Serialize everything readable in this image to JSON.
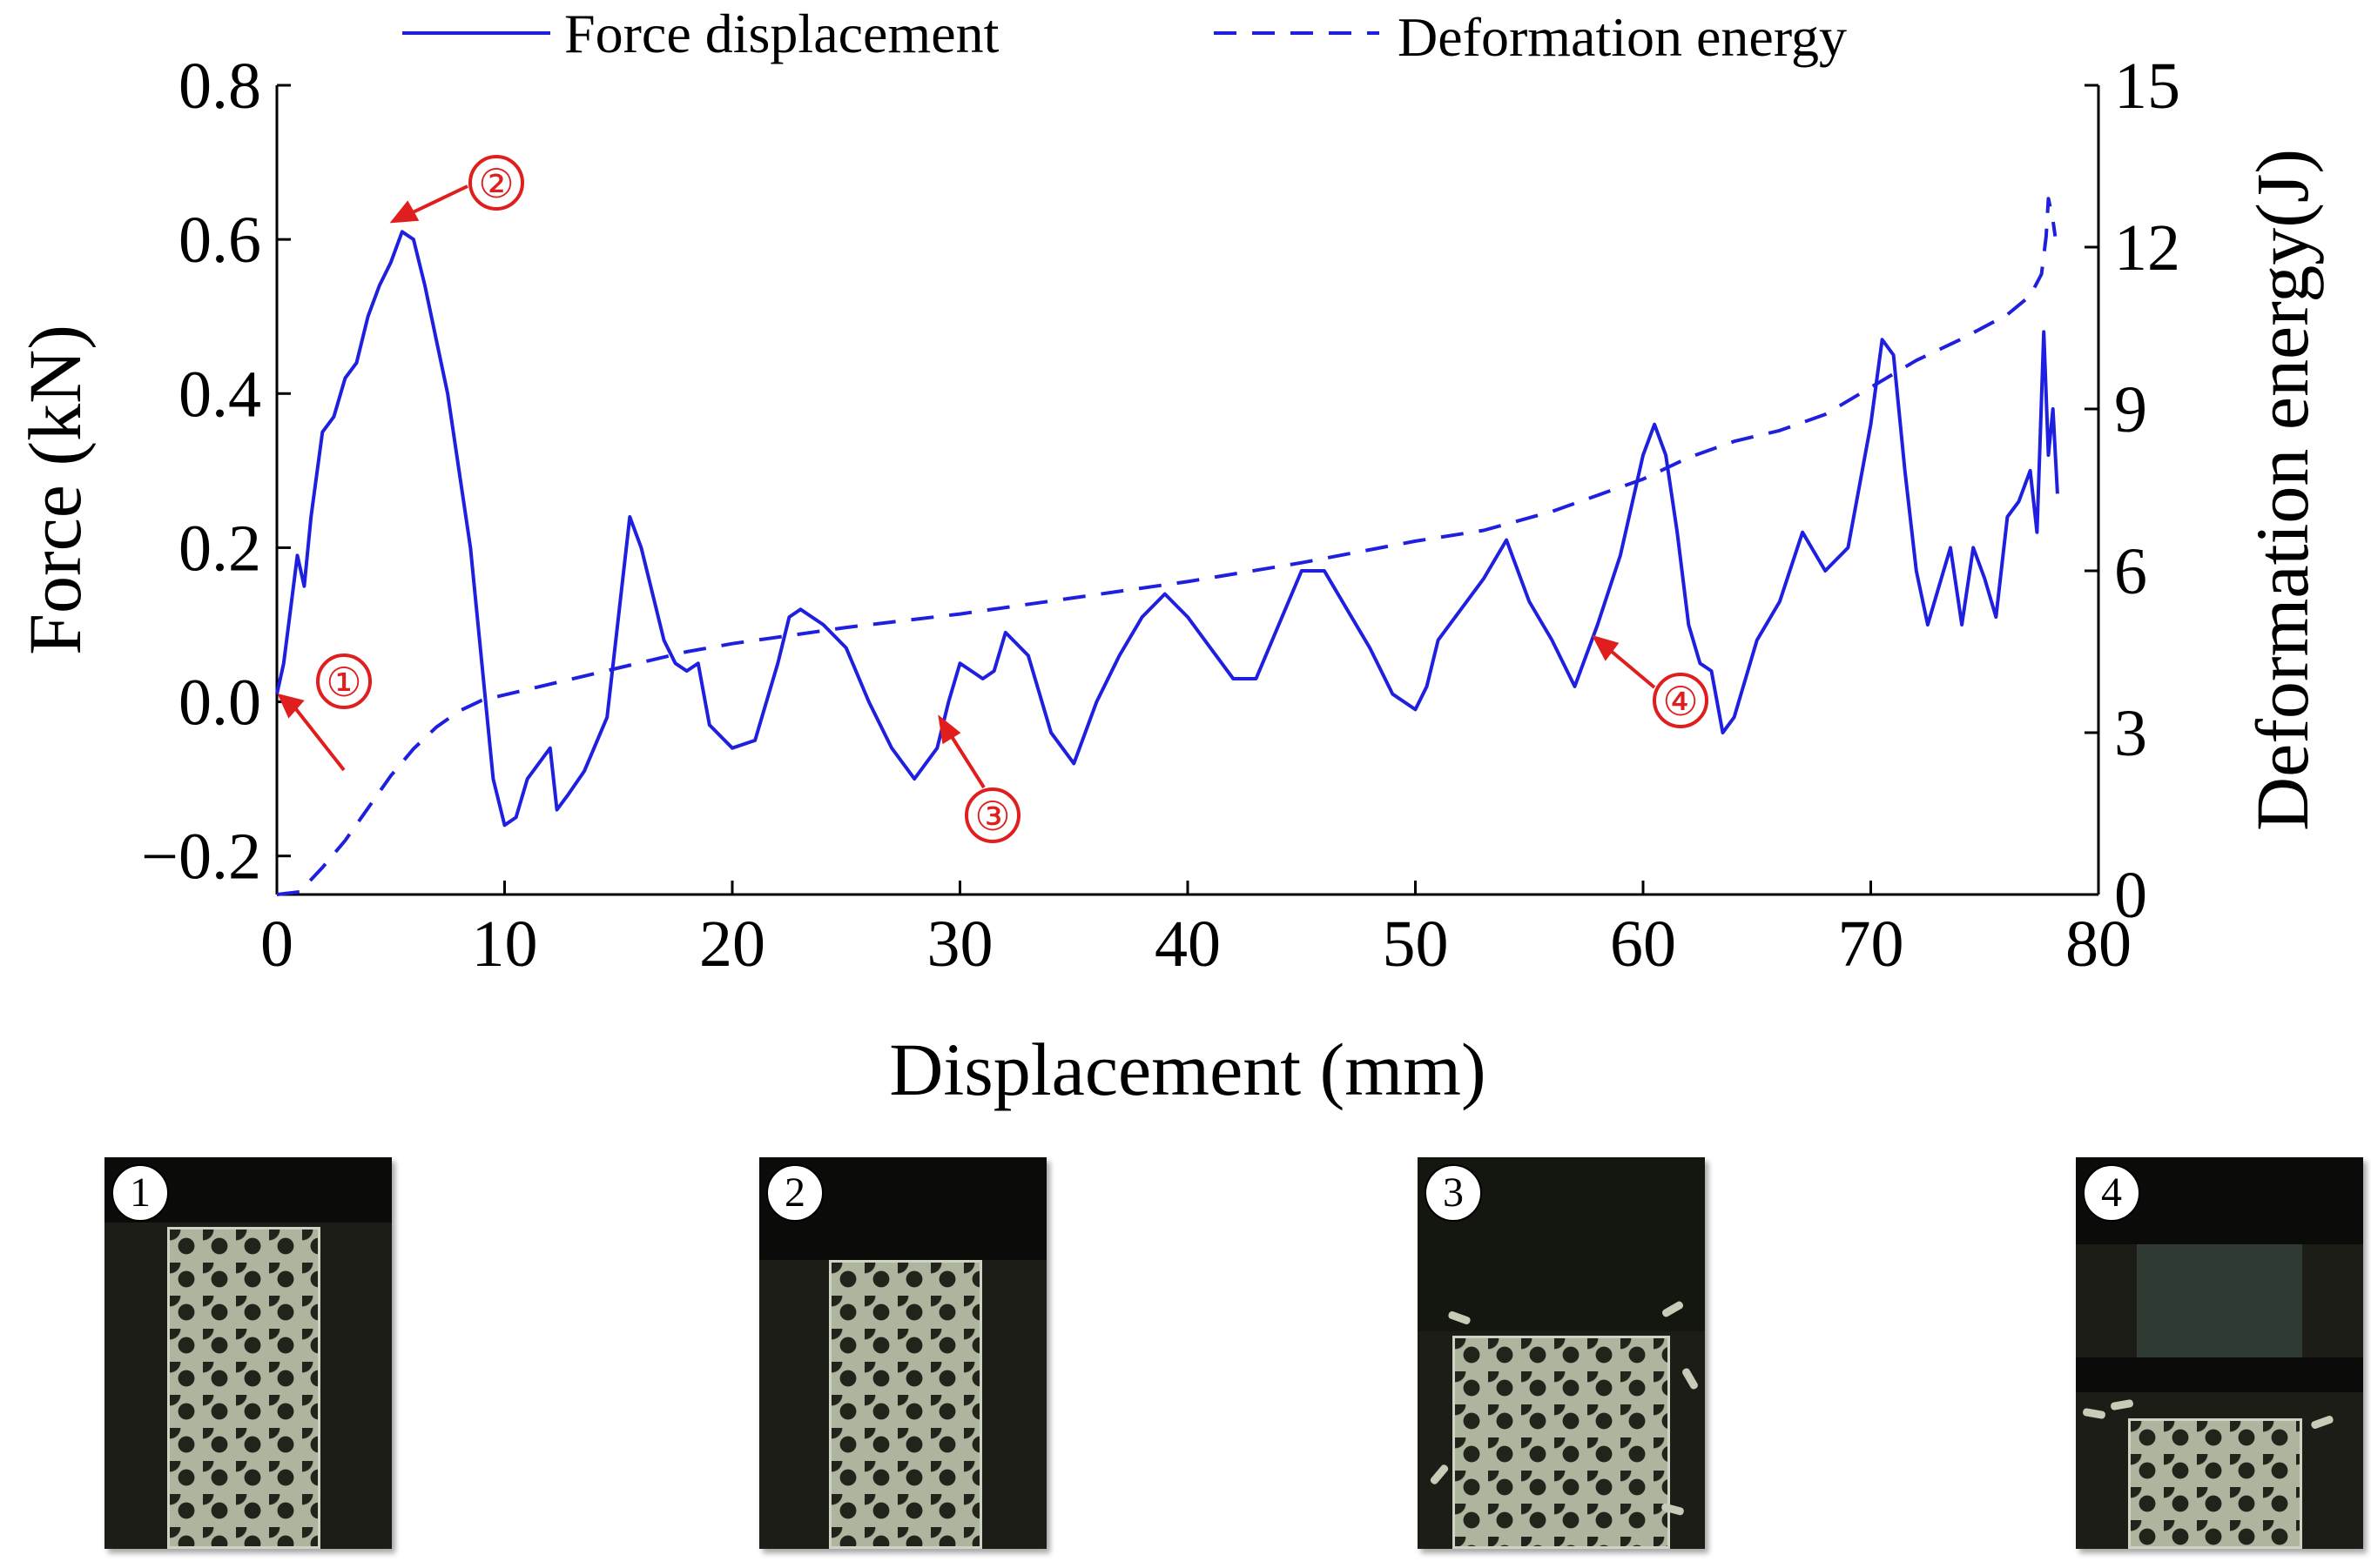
{
  "chart_data": {
    "type": "line",
    "xlabel": "Displacement (mm)",
    "ylabel_left": "Force (kN)",
    "ylabel_right": "Deformation energy(J)",
    "xlim": [
      0,
      80
    ],
    "ylim_left": [
      -0.25,
      0.8
    ],
    "ylim_right": [
      0,
      15
    ],
    "x_ticks": [
      "0",
      "10",
      "20",
      "30",
      "40",
      "50",
      "60",
      "70",
      "80"
    ],
    "y_ticks_left": [
      "−0.2",
      "0.0",
      "0.2",
      "0.4",
      "0.6",
      "0.8"
    ],
    "y_ticks_right": [
      "0",
      "3",
      "6",
      "9",
      "12",
      "15"
    ],
    "legend": {
      "placement": "top",
      "entries": [
        "Force displacement",
        "Deformation energy"
      ]
    },
    "series": [
      {
        "name": "Force displacement",
        "axis": "left",
        "style": "solid",
        "color": "#1f1fe0",
        "points": [
          [
            0,
            0.01
          ],
          [
            0.3,
            0.05
          ],
          [
            0.6,
            0.12
          ],
          [
            0.9,
            0.19
          ],
          [
            1.2,
            0.15
          ],
          [
            1.5,
            0.24
          ],
          [
            2,
            0.35
          ],
          [
            2.5,
            0.37
          ],
          [
            3,
            0.42
          ],
          [
            3.5,
            0.44
          ],
          [
            4,
            0.5
          ],
          [
            4.5,
            0.54
          ],
          [
            5,
            0.57
          ],
          [
            5.5,
            0.61
          ],
          [
            6,
            0.6
          ],
          [
            6.5,
            0.54
          ],
          [
            7,
            0.47
          ],
          [
            7.5,
            0.4
          ],
          [
            8,
            0.3
          ],
          [
            8.5,
            0.2
          ],
          [
            9,
            0.05
          ],
          [
            9.5,
            -0.1
          ],
          [
            10,
            -0.16
          ],
          [
            10.5,
            -0.15
          ],
          [
            11,
            -0.1
          ],
          [
            11.5,
            -0.08
          ],
          [
            12,
            -0.06
          ],
          [
            12.3,
            -0.14
          ],
          [
            12.8,
            -0.12
          ],
          [
            13.5,
            -0.09
          ],
          [
            14.5,
            -0.02
          ],
          [
            15.5,
            0.24
          ],
          [
            16,
            0.2
          ],
          [
            16.5,
            0.14
          ],
          [
            17,
            0.08
          ],
          [
            17.5,
            0.05
          ],
          [
            18,
            0.04
          ],
          [
            18.5,
            0.05
          ],
          [
            19,
            -0.03
          ],
          [
            20,
            -0.06
          ],
          [
            21,
            -0.05
          ],
          [
            22,
            0.05
          ],
          [
            22.5,
            0.11
          ],
          [
            23,
            0.12
          ],
          [
            24,
            0.1
          ],
          [
            25,
            0.07
          ],
          [
            26,
            0
          ],
          [
            27,
            -0.06
          ],
          [
            28,
            -0.1
          ],
          [
            29,
            -0.06
          ],
          [
            29.5,
            0
          ],
          [
            30,
            0.05
          ],
          [
            30.5,
            0.04
          ],
          [
            31,
            0.03
          ],
          [
            31.5,
            0.04
          ],
          [
            32,
            0.09
          ],
          [
            33,
            0.06
          ],
          [
            34,
            -0.04
          ],
          [
            35,
            -0.08
          ],
          [
            36,
            0
          ],
          [
            37,
            0.06
          ],
          [
            38,
            0.11
          ],
          [
            39,
            0.14
          ],
          [
            40,
            0.11
          ],
          [
            41,
            0.07
          ],
          [
            42,
            0.03
          ],
          [
            43,
            0.03
          ],
          [
            44,
            0.1
          ],
          [
            45,
            0.17
          ],
          [
            46,
            0.17
          ],
          [
            47,
            0.12
          ],
          [
            48,
            0.07
          ],
          [
            49,
            0.01
          ],
          [
            50,
            -0.01
          ],
          [
            50.5,
            0.02
          ],
          [
            51,
            0.08
          ],
          [
            52,
            0.12
          ],
          [
            53,
            0.16
          ],
          [
            54,
            0.21
          ],
          [
            55,
            0.13
          ],
          [
            56,
            0.08
          ],
          [
            57,
            0.02
          ],
          [
            58,
            0.1
          ],
          [
            59,
            0.19
          ],
          [
            60,
            0.32
          ],
          [
            60.5,
            0.36
          ],
          [
            61,
            0.32
          ],
          [
            61.5,
            0.22
          ],
          [
            62,
            0.1
          ],
          [
            62.5,
            0.05
          ],
          [
            63,
            0.04
          ],
          [
            63.5,
            -0.04
          ],
          [
            64,
            -0.02
          ],
          [
            65,
            0.08
          ],
          [
            66,
            0.13
          ],
          [
            67,
            0.22
          ],
          [
            68,
            0.17
          ],
          [
            69,
            0.2
          ],
          [
            70,
            0.36
          ],
          [
            70.5,
            0.47
          ],
          [
            71,
            0.45
          ],
          [
            71.5,
            0.3
          ],
          [
            72,
            0.17
          ],
          [
            72.5,
            0.1
          ],
          [
            73,
            0.15
          ],
          [
            73.5,
            0.2
          ],
          [
            74,
            0.1
          ],
          [
            74.5,
            0.2
          ],
          [
            75,
            0.16
          ],
          [
            75.5,
            0.11
          ],
          [
            76,
            0.24
          ],
          [
            76.5,
            0.26
          ],
          [
            77,
            0.3
          ],
          [
            77.3,
            0.22
          ],
          [
            77.6,
            0.48
          ],
          [
            77.8,
            0.32
          ],
          [
            78,
            0.38
          ],
          [
            78.2,
            0.27
          ]
        ]
      },
      {
        "name": "Deformation energy",
        "axis": "right",
        "style": "dashed",
        "color": "#1f1fe0",
        "points": [
          [
            0,
            0
          ],
          [
            1,
            0.05
          ],
          [
            2,
            0.5
          ],
          [
            3,
            1
          ],
          [
            4,
            1.6
          ],
          [
            5,
            2.2
          ],
          [
            6,
            2.7
          ],
          [
            7,
            3.1
          ],
          [
            8,
            3.4
          ],
          [
            9,
            3.6
          ],
          [
            10,
            3.7
          ],
          [
            12,
            3.9
          ],
          [
            14,
            4.1
          ],
          [
            16,
            4.3
          ],
          [
            18,
            4.5
          ],
          [
            20,
            4.65
          ],
          [
            25,
            4.95
          ],
          [
            30,
            5.2
          ],
          [
            35,
            5.5
          ],
          [
            40,
            5.8
          ],
          [
            45,
            6.15
          ],
          [
            50,
            6.55
          ],
          [
            53,
            6.75
          ],
          [
            56,
            7.1
          ],
          [
            58,
            7.4
          ],
          [
            60,
            7.7
          ],
          [
            62,
            8.1
          ],
          [
            64,
            8.4
          ],
          [
            66,
            8.6
          ],
          [
            68,
            8.9
          ],
          [
            70,
            9.4
          ],
          [
            72,
            9.9
          ],
          [
            74,
            10.3
          ],
          [
            76,
            10.75
          ],
          [
            77,
            11.1
          ],
          [
            77.5,
            11.5
          ],
          [
            77.7,
            12.2
          ],
          [
            77.8,
            12.9
          ],
          [
            78,
            12.5
          ],
          [
            78.1,
            12.2
          ]
        ]
      }
    ],
    "annotations": [
      "①",
      "②",
      "③",
      "④"
    ]
  },
  "photos": {
    "labels": [
      "1",
      "2",
      "3",
      "4"
    ],
    "description_colors": {
      "background": "#1b1d16",
      "lattice": "#aeb59f"
    }
  },
  "colors": {
    "line": "#1f1fe0",
    "annotation": "#e01e1e",
    "axis": "#000000"
  }
}
